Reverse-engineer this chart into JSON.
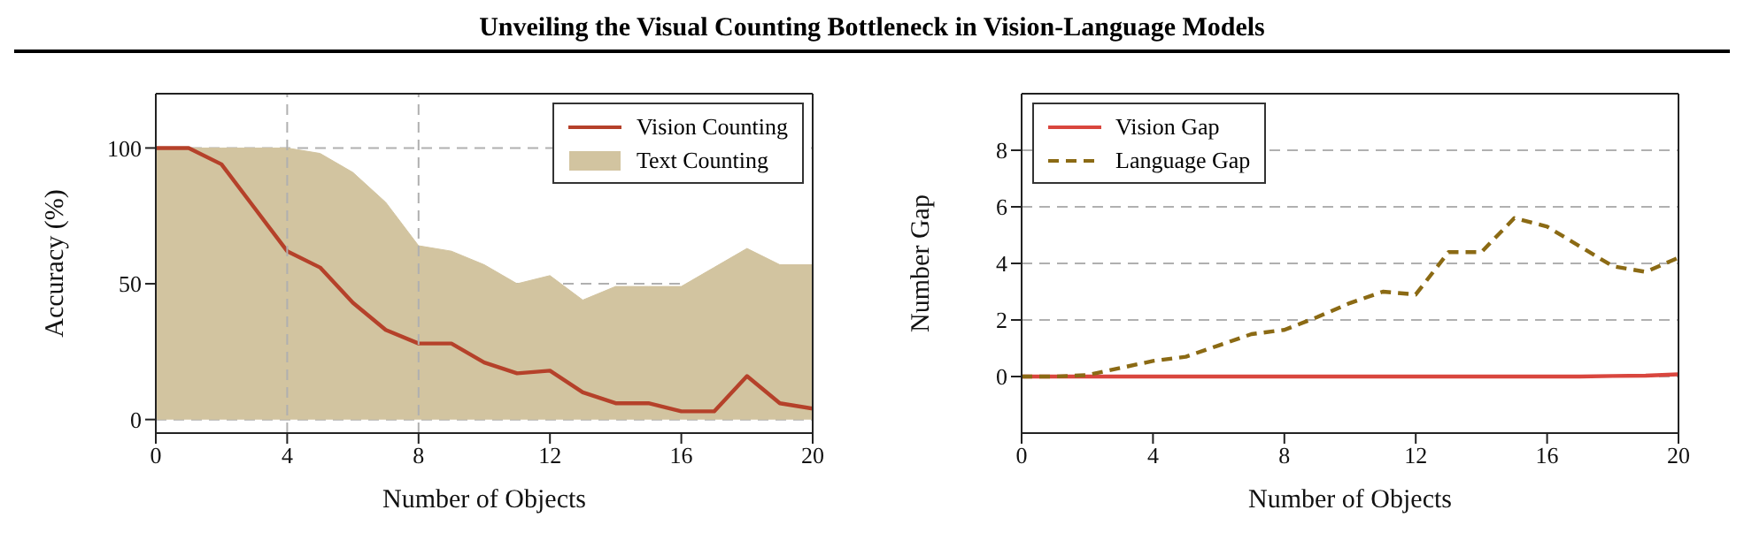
{
  "chart_data": [
    {
      "type": "area",
      "title": "Unveiling the Visual Counting Bottleneck in Vision-Language Models",
      "xlabel": "Number of Objects",
      "ylabel": "Accuracy (%)",
      "x": [
        0,
        1,
        2,
        3,
        4,
        5,
        6,
        7,
        8,
        9,
        10,
        11,
        12,
        13,
        14,
        15,
        16,
        17,
        18,
        19,
        20
      ],
      "series": [
        {
          "name": "Vision Counting",
          "type": "line",
          "color": "#b5412a",
          "values": [
            100,
            100,
            94,
            78,
            62,
            56,
            43,
            33,
            28,
            28,
            21,
            17,
            18,
            10,
            6,
            6,
            3,
            3,
            16,
            6,
            4
          ]
        },
        {
          "name": "Text Counting",
          "color": "#d2c4a0",
          "values": [
            100,
            100,
            100,
            100,
            100,
            98,
            91,
            80,
            64,
            62,
            57,
            50,
            53,
            44,
            49,
            49,
            49,
            56,
            63,
            57,
            57
          ]
        }
      ],
      "xlim": [
        0,
        20
      ],
      "xticks": [
        0,
        4,
        8,
        12,
        16,
        20
      ],
      "ylim": [
        -5,
        120
      ],
      "yticks": [
        0,
        50,
        100
      ],
      "grid": "y",
      "ref_lines": [
        {
          "axis": "x",
          "value": 4,
          "color": "#b0b0b0",
          "line_style": "dashed"
        },
        {
          "axis": "x",
          "value": 8,
          "color": "#b0b0b0",
          "line_style": "dashed"
        }
      ],
      "legend": "top right",
      "marker": "none"
    },
    {
      "type": "line",
      "xlabel": "Number of Objects",
      "ylabel": "Number Gap",
      "x": [
        0,
        1,
        2,
        3,
        4,
        5,
        6,
        7,
        8,
        9,
        10,
        11,
        12,
        13,
        14,
        15,
        16,
        17,
        18,
        19,
        20
      ],
      "series": [
        {
          "name": "Vision Gap",
          "color": "#d9463e",
          "line_style": "solid",
          "values": [
            0,
            0,
            0,
            0,
            0,
            0,
            0,
            0,
            0,
            0,
            0,
            0,
            0,
            0,
            0,
            0,
            0,
            0,
            0.02,
            0.03,
            0.08
          ]
        },
        {
          "name": "Language Gap",
          "color": "#8b6a14",
          "line_style": "dashed",
          "values": [
            0,
            0,
            0.05,
            0.3,
            0.55,
            0.7,
            1.1,
            1.5,
            1.65,
            2.1,
            2.6,
            3.0,
            2.9,
            4.4,
            4.4,
            5.6,
            5.3,
            4.6,
            3.9,
            3.7,
            4.2
          ]
        }
      ],
      "xlim": [
        0,
        20
      ],
      "xticks": [
        0,
        4,
        8,
        12,
        16,
        20
      ],
      "ylim": [
        -2,
        10
      ],
      "yticks": [
        0,
        2,
        4,
        6,
        8
      ],
      "grid": "y",
      "legend": "top left",
      "marker": "none"
    }
  ]
}
